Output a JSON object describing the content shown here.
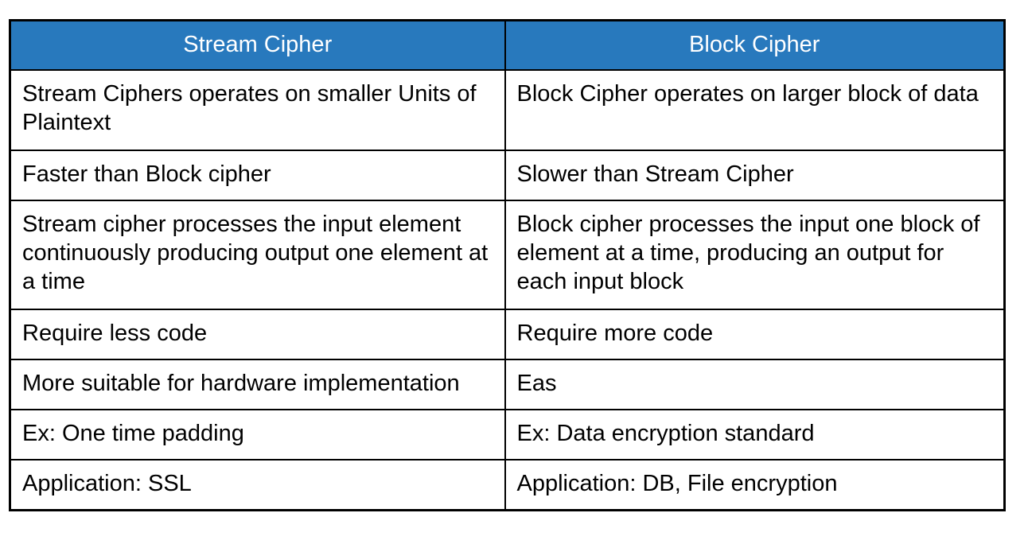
{
  "colors": {
    "header_bg": "#2879BD",
    "header_text": "#ffffff",
    "body_text": "#000000",
    "border": "#000000",
    "page_bg": "#ffffff"
  },
  "table": {
    "columns": [
      {
        "label": "Stream Cipher"
      },
      {
        "label": "Block Cipher"
      }
    ],
    "rows": [
      {
        "stream": "Stream Ciphers operates on smaller Units of Plaintext",
        "block": "Block Cipher operates on larger block of data"
      },
      {
        "stream": "Faster than Block cipher",
        "block": "Slower than Stream Cipher"
      },
      {
        "stream": "Stream cipher processes the input element continuously producing output one element at a time",
        "block": "Block cipher processes the input one block of element at a time, producing an output for each input block"
      },
      {
        "stream": "Require less code",
        "block": "Require more code"
      },
      {
        "stream": "More suitable for hardware implementation",
        "block": "Eas"
      },
      {
        "stream": "Ex: One time padding",
        "block": "Ex: Data encryption standard"
      },
      {
        "stream": "Application: SSL",
        "block": "Application: DB, File encryption"
      }
    ]
  }
}
